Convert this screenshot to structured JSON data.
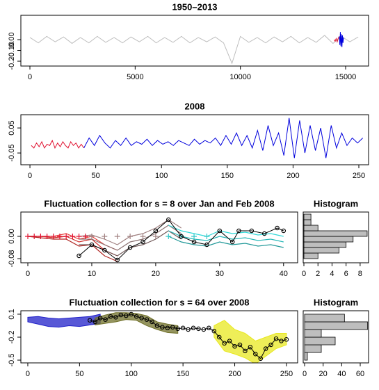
{
  "chart_data": [
    {
      "type": "line",
      "title": "1950–2013",
      "xlim": [
        -430,
        16090
      ],
      "xticks": [
        0,
        5000,
        10000,
        15000
      ],
      "ylim": [
        -0.245,
        0.226
      ],
      "yticks": [
        {
          "value": -0.2,
          "label": "-0.20"
        },
        {
          "value": -0.1,
          "label": "-0.10"
        },
        {
          "value": 0,
          "label": "0.00"
        }
      ],
      "series": [
        {
          "color": "#bebebe",
          "x": [
            0,
            400,
            800,
            1200,
            1600,
            2000,
            2400,
            2800,
            3200,
            3600,
            4000,
            4400,
            4800,
            5200,
            5600,
            6000,
            6400,
            6800,
            7200,
            7600,
            8000,
            8400,
            8800,
            9200,
            9600,
            10000,
            10400,
            10800,
            11200,
            11600,
            12000,
            12400,
            12800,
            13200,
            13600,
            14000,
            14400,
            14800,
            15200,
            15600
          ],
          "values": [
            0.02,
            -0.03,
            0.03,
            -0.02,
            0.025,
            -0.035,
            0.02,
            -0.03,
            0.03,
            -0.025,
            0.02,
            -0.03,
            0.025,
            -0.02,
            0.03,
            -0.03,
            0.02,
            -0.025,
            0.03,
            -0.03,
            0.02,
            -0.02,
            0.025,
            -0.03,
            -0.22,
            0.03,
            -0.025,
            0.02,
            -0.03,
            0.025,
            -0.02,
            0.03,
            -0.03,
            0.02,
            -0.025,
            0.04,
            -0.035,
            0.03,
            -0.02,
            0.025
          ]
        },
        {
          "color": "#e0102f",
          "x": [
            14450,
            14500,
            14550,
            14600,
            14650,
            14700
          ],
          "values": [
            0.0,
            -0.015,
            0.01,
            -0.02,
            0.015,
            0.03
          ]
        },
        {
          "color": "#0000dd",
          "x": [
            14700,
            14725,
            14750,
            14775,
            14800,
            14825,
            14850,
            14875,
            14900
          ],
          "values": [
            0.03,
            -0.05,
            0.07,
            -0.06,
            0.05,
            -0.07,
            0.04,
            -0.03,
            0.02
          ]
        }
      ]
    },
    {
      "type": "line",
      "title": "2008",
      "xlim": [
        -6.9,
        257.4
      ],
      "xticks": [
        0,
        50,
        100,
        150,
        200,
        250
      ],
      "ylim": [
        -0.097,
        0.103
      ],
      "yticks": [
        -0.05,
        0.05
      ],
      "series": [
        {
          "color": "#e0102f",
          "x": [
            1,
            3,
            5,
            7,
            9,
            11,
            13,
            15,
            17,
            19,
            21,
            23,
            25,
            27,
            29,
            31,
            33,
            35,
            37,
            39,
            41
          ],
          "values": [
            -0.02,
            -0.03,
            -0.01,
            -0.025,
            -0.005,
            -0.03,
            -0.015,
            -0.02,
            0.0,
            -0.03,
            -0.01,
            -0.025,
            -0.005,
            -0.02,
            -0.03,
            -0.005,
            -0.02,
            -0.01,
            -0.03,
            -0.015,
            -0.03
          ]
        },
        {
          "color": "#0000dd",
          "x": [
            41,
            45,
            49,
            53,
            57,
            61,
            65,
            69,
            73,
            77,
            81,
            85,
            89,
            93,
            97,
            101,
            105,
            109,
            113,
            117,
            121,
            125,
            129,
            133,
            137,
            141,
            145,
            149,
            153,
            157,
            161,
            165,
            169,
            173,
            177,
            181,
            185,
            189,
            193,
            197,
            201,
            205,
            209,
            213,
            217,
            221,
            225,
            229,
            233,
            237,
            241,
            245,
            249,
            253
          ],
          "values": [
            -0.03,
            0.01,
            -0.02,
            0.02,
            -0.01,
            -0.03,
            0.0,
            -0.02,
            0.01,
            -0.02,
            -0.005,
            -0.015,
            0.005,
            -0.02,
            0.0,
            -0.015,
            -0.005,
            -0.02,
            0.0,
            -0.01,
            -0.02,
            0.005,
            -0.015,
            0.0,
            -0.01,
            0.01,
            -0.02,
            0.02,
            -0.015,
            0.03,
            -0.02,
            0.02,
            -0.03,
            0.04,
            -0.04,
            0.06,
            -0.02,
            0.03,
            -0.06,
            0.09,
            -0.07,
            0.08,
            -0.05,
            0.06,
            -0.04,
            0.05,
            -0.07,
            0.06,
            -0.03,
            0.03,
            -0.02,
            0.01,
            -0.01,
            0.01
          ]
        }
      ]
    },
    {
      "type": "fluctuation",
      "title": "Fluctuation collection for s = 8 over Jan and Feb 2008",
      "xlim": [
        -1.09,
        42.2
      ],
      "xticks": [
        0,
        10,
        20,
        30,
        40
      ],
      "ylim": [
        -0.095,
        0.0875
      ],
      "yticks": [
        -0.08,
        {
          "value": 0,
          "label": "0.00"
        }
      ],
      "lines": [
        {
          "color": "#e8403a",
          "x": [
            0,
            2,
            4,
            6,
            8,
            10,
            12,
            14
          ],
          "values": [
            0,
            0,
            0,
            0.01,
            -0.01,
            0.0,
            -0.03,
            -0.05
          ]
        },
        {
          "color": "#d0302c",
          "x": [
            0,
            2,
            4,
            6,
            8,
            10,
            12,
            14
          ],
          "values": [
            0,
            0,
            -0.005,
            0,
            -0.02,
            -0.01,
            -0.05,
            -0.07
          ]
        },
        {
          "color": "#b02420",
          "x": [
            0,
            2,
            4,
            6,
            8,
            10,
            12,
            14
          ],
          "values": [
            0,
            -0.005,
            -0.01,
            -0.01,
            -0.035,
            -0.03,
            -0.07,
            -0.09
          ]
        },
        {
          "color": "#a08080",
          "x": [
            8,
            10,
            12,
            14,
            16,
            18,
            20,
            22,
            24
          ],
          "values": [
            0,
            0.005,
            -0.01,
            -0.03,
            0,
            0.01,
            0.03,
            0.06,
            0.03
          ]
        },
        {
          "color": "#8a7070",
          "x": [
            8,
            10,
            12,
            14,
            16,
            18,
            20,
            22,
            24
          ],
          "values": [
            -0.01,
            -0.01,
            -0.03,
            -0.05,
            -0.02,
            -0.01,
            0.01,
            0.04,
            0.01
          ]
        },
        {
          "color": "#705858",
          "x": [
            8,
            10,
            12,
            14,
            16,
            18,
            20,
            22,
            24
          ],
          "values": [
            -0.03,
            -0.03,
            -0.05,
            -0.07,
            -0.04,
            -0.03,
            -0.01,
            0.02,
            -0.01
          ]
        },
        {
          "color": "#30d8d8",
          "x": [
            22,
            24,
            26,
            28,
            30,
            32,
            34,
            36,
            38,
            40
          ],
          "values": [
            0.04,
            0.02,
            0.01,
            0.0,
            0.02,
            0.01,
            0.015,
            0.005,
            0.01,
            0.0
          ]
        },
        {
          "color": "#28b8b8",
          "x": [
            22,
            24,
            26,
            28,
            30,
            32,
            34,
            36,
            38,
            40
          ],
          "values": [
            0.02,
            0.0,
            -0.01,
            -0.015,
            0.0,
            -0.01,
            -0.005,
            -0.015,
            -0.01,
            -0.02
          ]
        },
        {
          "color": "#209898",
          "x": [
            22,
            24,
            26,
            28,
            30,
            32,
            34,
            36,
            38,
            40
          ],
          "values": [
            0.0,
            -0.02,
            -0.03,
            -0.035,
            -0.02,
            -0.03,
            -0.025,
            -0.035,
            -0.03,
            -0.04
          ]
        }
      ],
      "pluses": [
        {
          "color": "#e0102f",
          "x": [
            0,
            1,
            2,
            3,
            4,
            5,
            6,
            7,
            8,
            9
          ],
          "values": [
            0,
            0,
            0,
            0,
            0,
            0,
            0,
            0,
            0,
            0
          ]
        },
        {
          "color": "#a08080",
          "x": [
            10,
            12,
            14,
            16,
            18,
            20
          ],
          "values": [
            0,
            0,
            0,
            0,
            0,
            0
          ]
        },
        {
          "color": "#30c8c8",
          "x": [
            22,
            24,
            26,
            28
          ],
          "values": [
            0,
            0,
            0,
            0
          ]
        }
      ],
      "points": {
        "x": [
          8,
          10,
          12,
          14,
          16,
          18,
          20,
          22,
          24,
          26,
          28,
          30,
          32,
          33,
          35,
          37,
          39,
          40
        ],
        "values": [
          -0.07,
          -0.03,
          -0.05,
          -0.085,
          -0.04,
          -0.02,
          0.02,
          0.06,
          0.0,
          -0.02,
          -0.03,
          0.02,
          -0.02,
          0.02,
          0.02,
          0.01,
          0.03,
          0.02
        ]
      }
    },
    {
      "type": "histogram",
      "title": "Histogram",
      "color": "#bebebe",
      "xlim": [
        -0.1,
        9.2
      ],
      "xticks": [
        0,
        2,
        4,
        6,
        8
      ],
      "ylim": [
        -0.095,
        0.0875
      ],
      "bins": [
        -0.08,
        -0.06,
        -0.04,
        -0.02,
        0,
        0.02,
        0.04,
        0.06,
        0.08
      ],
      "counts": [
        2,
        5,
        6,
        7,
        9,
        2,
        1,
        1
      ]
    },
    {
      "type": "fluctuation",
      "title": "Fluctuation collection for s = 64 over 2008",
      "xlim": [
        -6.7,
        260.8
      ],
      "xticks": [
        0,
        50,
        100,
        150,
        200,
        250
      ],
      "ylim": [
        -0.536,
        0.145
      ],
      "yticks": [
        0.1,
        -0.2,
        -0.5
      ],
      "bands": [
        {
          "color": "#2020c8",
          "x": [
            0,
            10,
            20,
            30,
            40,
            50,
            60,
            70
          ],
          "lower": [
            0.0,
            -0.03,
            -0.06,
            -0.07,
            -0.05,
            -0.06,
            -0.04,
            -0.02
          ],
          "upper": [
            0.06,
            0.07,
            0.05,
            0.04,
            0.05,
            0.06,
            0.07,
            0.1
          ]
        },
        {
          "color": "#70702a",
          "x": [
            65,
            75,
            85,
            95,
            105,
            115,
            125,
            135,
            145
          ],
          "lower": [
            -0.04,
            -0.02,
            0.0,
            0.03,
            0.02,
            -0.05,
            -0.1,
            -0.14,
            -0.15
          ],
          "upper": [
            0.05,
            0.09,
            0.12,
            0.12,
            0.11,
            0.08,
            0.0,
            -0.03,
            -0.05
          ]
        },
        {
          "color": "#e8e820",
          "x": [
            180,
            190,
            200,
            210,
            220,
            230,
            240,
            250
          ],
          "lower": [
            -0.2,
            -0.38,
            -0.42,
            -0.47,
            -0.55,
            -0.45,
            -0.35,
            -0.3
          ],
          "upper": [
            -0.05,
            0.02,
            -0.1,
            -0.15,
            -0.25,
            -0.2,
            -0.15,
            -0.15
          ]
        }
      ],
      "points": {
        "x": [
          60,
          65,
          70,
          75,
          80,
          85,
          90,
          95,
          100,
          105,
          110,
          115,
          120,
          125,
          130,
          135,
          140,
          145,
          150,
          155,
          160,
          165,
          170,
          175,
          180,
          185,
          190,
          195,
          200,
          205,
          210,
          215,
          220,
          225,
          230,
          235,
          240,
          245,
          250
        ],
        "values": [
          0.02,
          0.0,
          0.05,
          0.03,
          0.07,
          0.06,
          0.09,
          0.08,
          0.1,
          0.07,
          0.05,
          0.03,
          0.0,
          -0.05,
          -0.07,
          -0.08,
          -0.07,
          -0.09,
          -0.08,
          -0.1,
          -0.08,
          -0.09,
          -0.1,
          -0.08,
          -0.12,
          -0.2,
          -0.28,
          -0.25,
          -0.32,
          -0.3,
          -0.38,
          -0.33,
          -0.42,
          -0.48,
          -0.35,
          -0.3,
          -0.22,
          -0.25,
          -0.23
        ]
      }
    },
    {
      "type": "histogram",
      "title": "Histogram",
      "color": "#bebebe",
      "xlim": [
        -1.5,
        69
      ],
      "xticks": [
        0,
        20,
        40,
        60
      ],
      "ylim": [
        -0.536,
        0.145
      ],
      "bins": [
        -0.5,
        -0.4,
        -0.3,
        -0.2,
        -0.1,
        0.0,
        0.1
      ],
      "counts": [
        3,
        18,
        33,
        18,
        68,
        43
      ]
    }
  ]
}
